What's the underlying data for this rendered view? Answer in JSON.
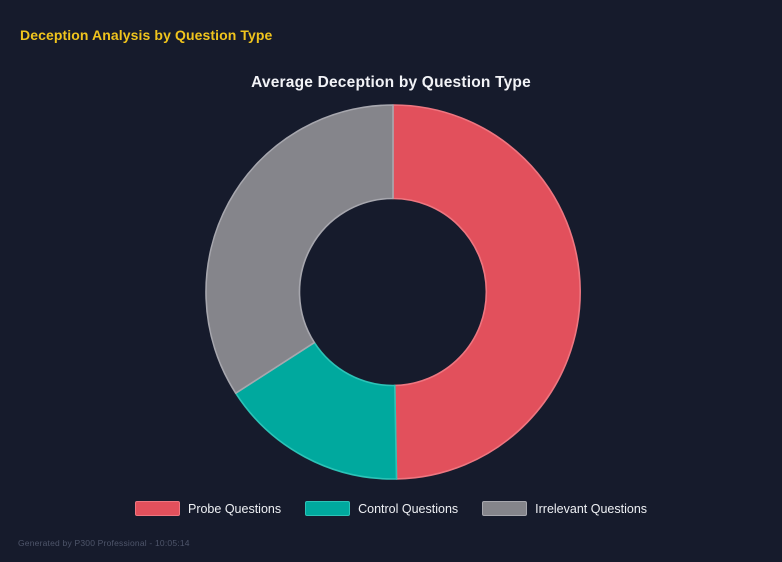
{
  "page": {
    "background": "#161b2c"
  },
  "header": {
    "title": "Deception Analysis by Question Type",
    "color": "#f0c41d"
  },
  "chart_data": {
    "type": "pie",
    "variant": "doughnut",
    "title": "Average Deception by Question Type",
    "categories": [
      "Probe Questions",
      "Control Questions",
      "Irrelevant Questions"
    ],
    "values": [
      49.7,
      16.2,
      34.1
    ],
    "values_unit": "percent of circle (estimated from arc angles)",
    "colors": [
      "#e2505c",
      "#00a99e",
      "#85858b"
    ],
    "border_colors": [
      "#ee7680",
      "#2cc3b7",
      "#a7a7ae"
    ],
    "cutout_ratio": 0.5,
    "start_angle_deg": 0,
    "direction": "clockwise",
    "legend_position": "bottom",
    "title_color": "#f2f3f7",
    "legend_text_color": "#eef0f4"
  },
  "footer": {
    "text": "Generated by P300 Professional - 10:05:14",
    "color": "#4e556a"
  }
}
